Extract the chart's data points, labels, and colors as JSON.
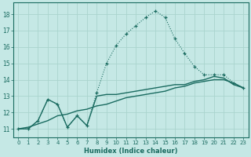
{
  "xlabel": "Humidex (Indice chaleur)",
  "xlim": [
    -0.5,
    23.5
  ],
  "ylim": [
    10.5,
    18.7
  ],
  "xticks": [
    0,
    1,
    2,
    3,
    4,
    5,
    6,
    7,
    8,
    9,
    10,
    11,
    12,
    13,
    14,
    15,
    16,
    17,
    18,
    19,
    20,
    21,
    22,
    23
  ],
  "yticks": [
    11,
    12,
    13,
    14,
    15,
    16,
    17,
    18
  ],
  "bg_color": "#c5e8e5",
  "line_color": "#1a6b60",
  "grid_color": "#aad4ce",
  "dotted_x": [
    0,
    1,
    2,
    3,
    4,
    5,
    6,
    7,
    8,
    9,
    10,
    11,
    12,
    13,
    14,
    15,
    16,
    17,
    18,
    19,
    20,
    21,
    22,
    23
  ],
  "dotted_y": [
    11.0,
    11.0,
    11.5,
    12.8,
    12.5,
    11.1,
    11.8,
    11.2,
    13.2,
    15.0,
    16.1,
    16.8,
    17.3,
    17.8,
    18.2,
    17.8,
    16.5,
    15.6,
    14.8,
    14.3,
    14.3,
    14.3,
    13.8,
    13.5
  ],
  "solid1_x": [
    0,
    1,
    2,
    3,
    4,
    5,
    6,
    7,
    8,
    9,
    10,
    11,
    12,
    13,
    14,
    15,
    16,
    17,
    18,
    19,
    20,
    21,
    22,
    23
  ],
  "solid1_y": [
    11.0,
    11.0,
    11.5,
    12.8,
    12.5,
    11.1,
    11.8,
    11.2,
    13.0,
    13.1,
    13.1,
    13.2,
    13.3,
    13.4,
    13.5,
    13.6,
    13.7,
    13.7,
    13.9,
    14.0,
    14.2,
    14.1,
    13.7,
    13.5
  ],
  "solid2_x": [
    0,
    1,
    2,
    3,
    4,
    5,
    6,
    7,
    8,
    9,
    10,
    11,
    12,
    13,
    14,
    15,
    16,
    17,
    18,
    19,
    20,
    21,
    22,
    23
  ],
  "solid2_y": [
    11.0,
    11.1,
    11.3,
    11.5,
    11.8,
    11.9,
    12.1,
    12.2,
    12.4,
    12.5,
    12.7,
    12.9,
    13.0,
    13.1,
    13.2,
    13.3,
    13.5,
    13.6,
    13.8,
    13.9,
    14.0,
    14.0,
    13.8,
    13.5
  ]
}
